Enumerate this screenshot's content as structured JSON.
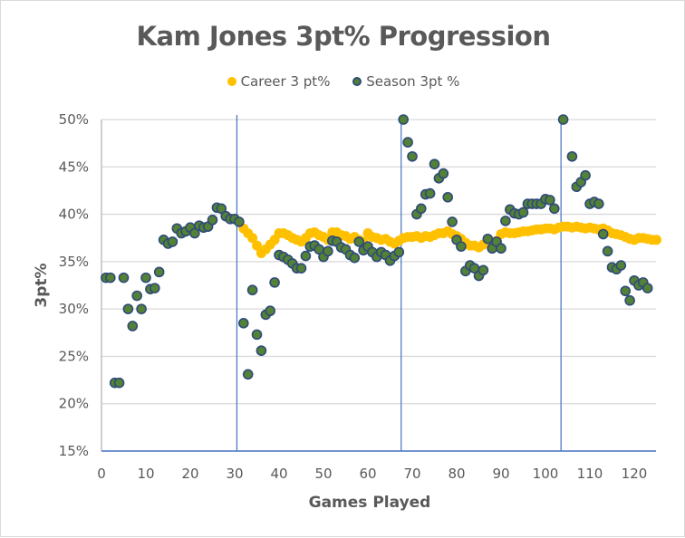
{
  "chart_data": {
    "type": "scatter",
    "title": "Kam Jones 3pt% Progression",
    "xlabel": "Games Played",
    "ylabel": "3pt%",
    "xlim": [
      0,
      125
    ],
    "ylim": [
      15,
      50
    ],
    "xticks": [
      "0",
      "10",
      "20",
      "30",
      "40",
      "50",
      "60",
      "70",
      "80",
      "90",
      "100",
      "110",
      "120"
    ],
    "yticks": [
      "15%",
      "20%",
      "25%",
      "30%",
      "35%",
      "40%",
      "45%",
      "50%"
    ],
    "grid": "horizontal",
    "legend_position": "top",
    "season_breaks": [
      30.5,
      67.5,
      103.5
    ],
    "colors": {
      "career": "#FFC000",
      "season_fill": "#538135",
      "season_edge": "#2F4A7A",
      "break_line": "#4472C4",
      "grid": "#d9d9d9"
    },
    "series": [
      {
        "name": "Career 3 pt%",
        "x_start": 1,
        "values": [
          33.3,
          33.3,
          22.2,
          22.2,
          33.3,
          30.0,
          28.2,
          31.4,
          30.0,
          33.3,
          32.1,
          32.2,
          33.9,
          37.3,
          36.9,
          37.1,
          38.5,
          38.0,
          38.2,
          38.6,
          38.0,
          38.8,
          38.6,
          38.7,
          39.4,
          40.7,
          40.6,
          39.8,
          39.5,
          39.5,
          39.2,
          38.5,
          38.0,
          37.5,
          36.7,
          35.9,
          36.3,
          36.8,
          37.3,
          38.0,
          38.0,
          37.8,
          37.5,
          37.3,
          37.1,
          37.5,
          38.0,
          38.1,
          37.8,
          37.6,
          37.3,
          38.1,
          38.1,
          37.8,
          37.7,
          37.4,
          37.6,
          37.3,
          37.1,
          38.0,
          37.6,
          37.5,
          37.3,
          37.4,
          37.1,
          36.9,
          37.2,
          37.5,
          37.6,
          37.6,
          37.7,
          37.5,
          37.7,
          37.6,
          37.8,
          38.0,
          38.0,
          38.2,
          37.9,
          37.7,
          37.4,
          37.0,
          36.7,
          36.7,
          36.5,
          36.8,
          37.1,
          37.0,
          37.2,
          37.9,
          38.1,
          38.0,
          38.0,
          38.1,
          38.2,
          38.2,
          38.3,
          38.4,
          38.4,
          38.5,
          38.5,
          38.4,
          38.6,
          38.7,
          38.7,
          38.6,
          38.7,
          38.6,
          38.5,
          38.6,
          38.5,
          38.4,
          38.5,
          38.3,
          38.0,
          37.9,
          37.8,
          37.6,
          37.4,
          37.3,
          37.5,
          37.5,
          37.4,
          37.3,
          37.3
        ]
      },
      {
        "name": "Season 3pt %",
        "x_start": 1,
        "values": [
          33.3,
          33.3,
          22.2,
          22.2,
          33.3,
          30.0,
          28.2,
          31.4,
          30.0,
          33.3,
          32.1,
          32.2,
          33.9,
          37.3,
          36.9,
          37.1,
          38.5,
          38.0,
          38.2,
          38.6,
          38.0,
          38.8,
          38.6,
          38.7,
          39.4,
          40.7,
          40.6,
          39.8,
          39.5,
          39.5,
          39.2,
          28.5,
          23.1,
          32.0,
          27.3,
          25.6,
          29.4,
          29.8,
          32.8,
          35.7,
          35.5,
          35.2,
          34.8,
          34.3,
          34.3,
          35.6,
          36.6,
          36.7,
          36.3,
          35.5,
          36.1,
          37.2,
          37.1,
          36.5,
          36.3,
          35.7,
          35.4,
          37.1,
          36.2,
          36.6,
          36.0,
          35.5,
          36.0,
          35.7,
          35.1,
          35.6,
          36.0,
          50.0,
          47.6,
          46.1,
          40.0,
          40.6,
          42.1,
          42.2,
          45.3,
          43.8,
          44.3,
          41.8,
          39.2,
          37.3,
          36.6,
          34.0,
          34.6,
          34.3,
          33.5,
          34.1,
          37.4,
          36.4,
          37.1,
          36.4,
          39.3,
          40.5,
          40.1,
          40.0,
          40.2,
          41.1,
          41.1,
          41.1,
          41.1,
          41.6,
          41.5,
          40.6,
          null,
          50.0,
          null,
          46.1,
          42.9,
          43.4,
          44.1,
          41.1,
          41.3,
          41.1,
          37.9,
          36.1,
          34.4,
          34.2,
          34.6,
          31.9,
          30.9,
          33.0,
          32.5,
          32.8,
          32.2
        ]
      }
    ]
  }
}
